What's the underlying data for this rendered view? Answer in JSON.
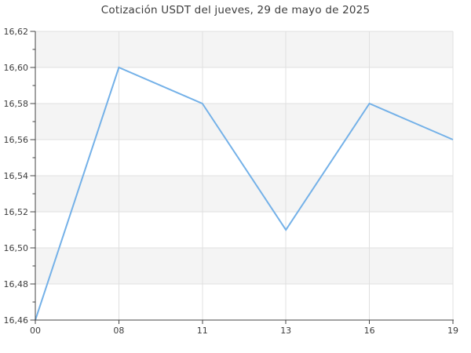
{
  "title": "Cotización USDT del jueves, 29 de mayo de 2025",
  "chart_data": {
    "type": "line",
    "title": "Cotización USDT del jueves, 29 de mayo de 2025",
    "x_labels": [
      "00",
      "08",
      "11",
      "13",
      "16",
      "19"
    ],
    "values": [
      16.46,
      16.6,
      16.58,
      16.51,
      16.58,
      16.56
    ],
    "xlabel": "",
    "ylabel": "",
    "ylim": [
      16.46,
      16.62
    ],
    "ytick_step": 0.02,
    "ytick_labels": [
      "16,46",
      "16,48",
      "16,50",
      "16,52",
      "16,54",
      "16,56",
      "16,58",
      "16,60",
      "16,62"
    ],
    "grid": true,
    "legend": false,
    "alternating_bands": true,
    "colors": {
      "line": "#74b1e8",
      "band": "#f4f4f4",
      "grid": "#e0e0e0",
      "axis": "#444444",
      "text": "#3d3d3d"
    }
  }
}
